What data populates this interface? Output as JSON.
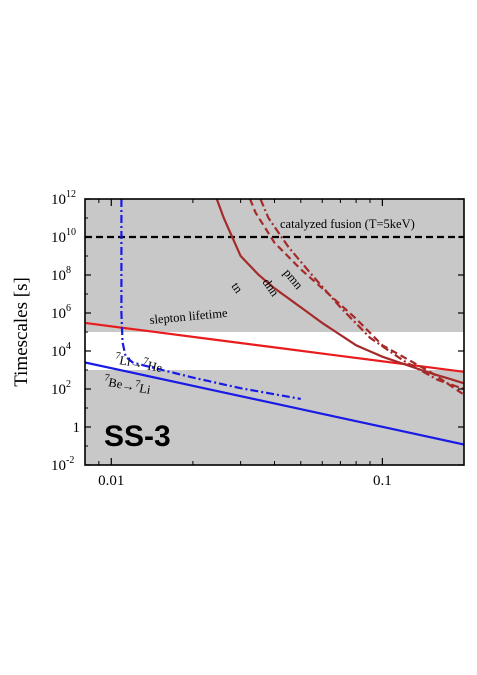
{
  "chart_data": {
    "type": "line",
    "title": "",
    "panel_label": "SS-3",
    "xlabel": "",
    "ylabel": "Timescales [s]",
    "x_scale": "log",
    "y_scale": "log",
    "xlim": [
      0.008,
      0.2
    ],
    "ylim": [
      0.01,
      1000000000000.0
    ],
    "x_ticks": [
      {
        "value": 0.01,
        "label": "0.01"
      },
      {
        "value": 0.1,
        "label": "0.1"
      }
    ],
    "y_ticks": [
      {
        "value": 0.01,
        "base": "10",
        "exp": "-2"
      },
      {
        "value": 1,
        "base": "1",
        "exp": ""
      },
      {
        "value": 100,
        "base": "10",
        "exp": "2"
      },
      {
        "value": 10000,
        "base": "10",
        "exp": "4"
      },
      {
        "value": 1000000,
        "base": "10",
        "exp": "6"
      },
      {
        "value": 100000000,
        "base": "10",
        "exp": "8"
      },
      {
        "value": 10000000000,
        "base": "10",
        "exp": "10"
      },
      {
        "value": 1000000000000,
        "base": "10",
        "exp": "12"
      }
    ],
    "grid": false,
    "background": "#c8c8c8",
    "unshaded_band": {
      "y_from": 1000,
      "y_to": 100000,
      "color": "#ffffff"
    },
    "series": [
      {
        "name": "catalyzed fusion (T=5keV)",
        "color": "#000000",
        "dash": "dashed",
        "x": [
          0.008,
          0.2
        ],
        "y": [
          10000000000.0,
          10000000000.0
        ]
      },
      {
        "name": "slepton lifetime",
        "color": "#e81c1c",
        "dash": "solid",
        "x": [
          0.008,
          0.2
        ],
        "y": [
          300000,
          800
        ]
      },
      {
        "name": "7Be→7Li",
        "color": "#1a1ae6",
        "dash": "solid",
        "x": [
          0.008,
          0.2
        ],
        "y": [
          2500,
          0.12
        ]
      },
      {
        "name": "7Li→7He",
        "color": "#1a1ae6",
        "dash": "dashdot",
        "x": [
          0.0109,
          0.0109,
          0.011,
          0.0113,
          0.012,
          0.014,
          0.02,
          0.03,
          0.05
        ],
        "y": [
          1000000000000.0,
          1000000.0,
          30000,
          5000,
          2500,
          1400,
          400,
          110,
          30
        ]
      },
      {
        "name": "tn",
        "color": "#a52a2a",
        "dash": "solid",
        "x": [
          0.0245,
          0.026,
          0.03,
          0.035,
          0.04,
          0.05,
          0.06,
          0.08,
          0.1,
          0.15,
          0.2
        ],
        "y": [
          1000000000000.0,
          100000000000.0,
          1000000000.0,
          100000000.0,
          20000000.0,
          2000000.0,
          300000,
          20000,
          5000,
          700,
          200
        ]
      },
      {
        "name": "dnn",
        "color": "#a52a2a",
        "dash": "dashed",
        "x": [
          0.0325,
          0.034,
          0.04,
          0.05,
          0.06,
          0.08,
          0.1,
          0.15,
          0.2
        ],
        "y": [
          1000000000000.0,
          200000000000.0,
          5000000000.0,
          200000000.0,
          20000000.0,
          500000,
          20000,
          800,
          50
        ]
      },
      {
        "name": "pmn",
        "color": "#a52a2a",
        "dash": "dashdot",
        "x": [
          0.0355,
          0.038,
          0.045,
          0.055,
          0.07,
          0.09,
          0.12,
          0.16,
          0.2
        ],
        "y": [
          1000000000000.0,
          100000000000.0,
          3000000000.0,
          100000000.0,
          2000000.0,
          50000,
          3000,
          300,
          100
        ]
      }
    ],
    "annotations": [
      {
        "text": "catalyzed fusion (T=5keV)",
        "series": "catalyzed fusion (T=5keV)"
      },
      {
        "text": "slepton lifetime",
        "series": "slepton lifetime"
      },
      {
        "text_sup": "7",
        "text_a": "Li→",
        "text_sup2": "7",
        "text_b": "He",
        "series": "7Li→7He"
      },
      {
        "text_sup": "7",
        "text_a": "Be→",
        "text_sup2": "7",
        "text_b": "Li",
        "series": "7Be→7Li"
      },
      {
        "text": "tn",
        "series": "tn"
      },
      {
        "text": "dnn",
        "series": "dnn"
      },
      {
        "text": "pmn",
        "series": "pmn"
      }
    ]
  }
}
